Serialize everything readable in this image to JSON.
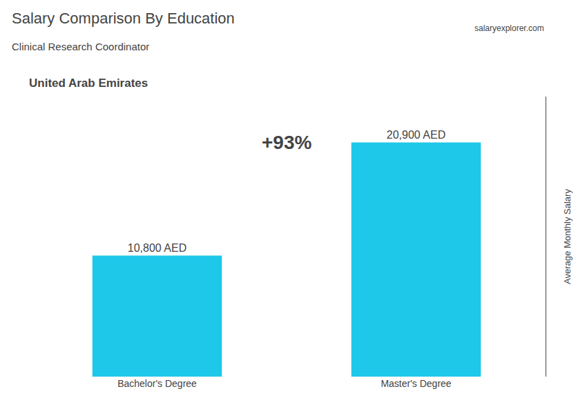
{
  "chart_data": {
    "type": "bar",
    "title": "Salary Comparison By Education",
    "subtitle": "Clinical Research Coordinator",
    "ylabel": "Average Monthly Salary",
    "categories": [
      "Bachelor's Degree",
      "Master's Degree"
    ],
    "values": [
      10800,
      20900
    ],
    "value_labels": [
      "10,800 AED",
      "20,900 AED"
    ],
    "color": "#1EC8E8",
    "data_labels": true,
    "ylim": [
      0,
      25000
    ],
    "grid": false,
    "tick_labels": "x",
    "annotations": [
      {
        "text": "United Arab Emirates"
      },
      {
        "text": "salaryexplorer.com"
      },
      {
        "text": "+93%"
      }
    ]
  }
}
